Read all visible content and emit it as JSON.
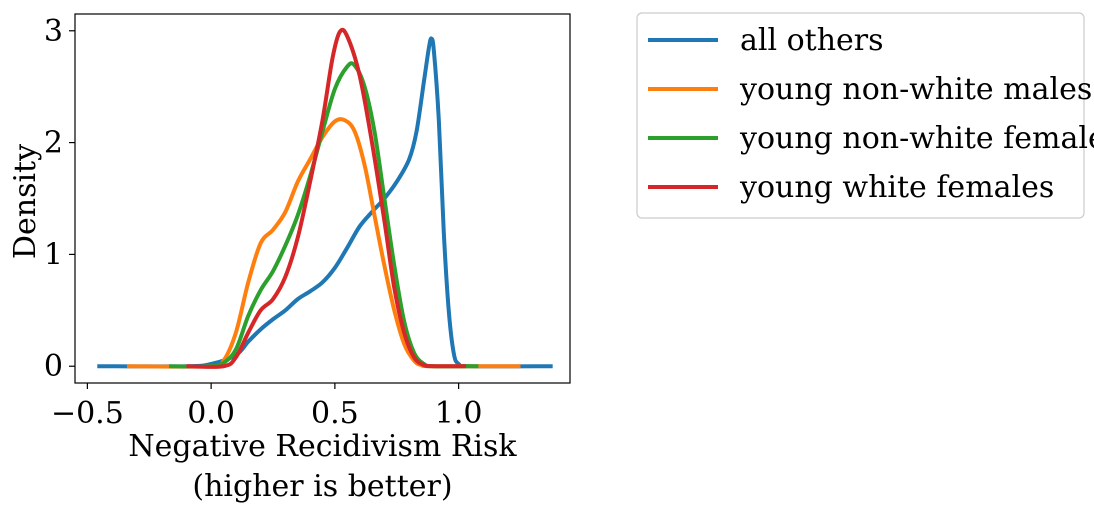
{
  "chart_data": {
    "type": "line",
    "title": "",
    "xlabel_lines": [
      "Negative Recidivism Risk",
      "(higher is better)"
    ],
    "ylabel": "Density",
    "xlim": [
      -0.55,
      1.45
    ],
    "ylim": [
      -0.15,
      3.15
    ],
    "xticks": [
      -0.5,
      0.0,
      0.5,
      1.0
    ],
    "xtick_labels": [
      "−0.5",
      "0.0",
      "0.5",
      "1.0"
    ],
    "yticks": [
      0,
      1,
      2,
      3
    ],
    "ytick_labels": [
      "0",
      "1",
      "2",
      "3"
    ],
    "grid": false,
    "legend_position": "outside-right-top",
    "series": [
      {
        "name": "all others",
        "color": "#1f77b4",
        "points": [
          [
            -0.46,
            0.0
          ],
          [
            -0.1,
            0.0
          ],
          [
            0.0,
            0.02
          ],
          [
            0.1,
            0.1
          ],
          [
            0.15,
            0.22
          ],
          [
            0.2,
            0.33
          ],
          [
            0.25,
            0.42
          ],
          [
            0.3,
            0.5
          ],
          [
            0.35,
            0.6
          ],
          [
            0.4,
            0.67
          ],
          [
            0.45,
            0.75
          ],
          [
            0.5,
            0.88
          ],
          [
            0.55,
            1.06
          ],
          [
            0.6,
            1.25
          ],
          [
            0.65,
            1.38
          ],
          [
            0.7,
            1.5
          ],
          [
            0.75,
            1.65
          ],
          [
            0.8,
            1.85
          ],
          [
            0.83,
            2.1
          ],
          [
            0.86,
            2.55
          ],
          [
            0.88,
            2.85
          ],
          [
            0.89,
            2.93
          ],
          [
            0.9,
            2.82
          ],
          [
            0.92,
            2.2
          ],
          [
            0.94,
            1.2
          ],
          [
            0.96,
            0.5
          ],
          [
            0.98,
            0.12
          ],
          [
            1.0,
            0.02
          ],
          [
            1.05,
            0.0
          ],
          [
            1.38,
            0.0
          ]
        ]
      },
      {
        "name": "young non-white males",
        "color": "#ff7f0e",
        "points": [
          [
            -0.34,
            0.0
          ],
          [
            0.0,
            0.0
          ],
          [
            0.05,
            0.05
          ],
          [
            0.1,
            0.3
          ],
          [
            0.15,
            0.75
          ],
          [
            0.2,
            1.1
          ],
          [
            0.25,
            1.22
          ],
          [
            0.3,
            1.38
          ],
          [
            0.35,
            1.65
          ],
          [
            0.4,
            1.85
          ],
          [
            0.45,
            2.05
          ],
          [
            0.5,
            2.19
          ],
          [
            0.54,
            2.2
          ],
          [
            0.58,
            2.1
          ],
          [
            0.62,
            1.8
          ],
          [
            0.66,
            1.35
          ],
          [
            0.7,
            0.9
          ],
          [
            0.74,
            0.5
          ],
          [
            0.78,
            0.2
          ],
          [
            0.82,
            0.05
          ],
          [
            0.85,
            0.01
          ],
          [
            0.9,
            0.0
          ],
          [
            1.25,
            0.0
          ]
        ]
      },
      {
        "name": "young non-white females",
        "color": "#2ca02c",
        "points": [
          [
            -0.17,
            0.0
          ],
          [
            0.0,
            0.0
          ],
          [
            0.05,
            0.03
          ],
          [
            0.1,
            0.15
          ],
          [
            0.15,
            0.45
          ],
          [
            0.2,
            0.68
          ],
          [
            0.25,
            0.85
          ],
          [
            0.3,
            1.08
          ],
          [
            0.35,
            1.35
          ],
          [
            0.4,
            1.7
          ],
          [
            0.45,
            2.1
          ],
          [
            0.5,
            2.48
          ],
          [
            0.55,
            2.68
          ],
          [
            0.58,
            2.69
          ],
          [
            0.62,
            2.5
          ],
          [
            0.66,
            2.1
          ],
          [
            0.7,
            1.5
          ],
          [
            0.74,
            0.9
          ],
          [
            0.78,
            0.4
          ],
          [
            0.82,
            0.12
          ],
          [
            0.86,
            0.02
          ],
          [
            0.9,
            0.0
          ],
          [
            1.08,
            0.0
          ]
        ]
      },
      {
        "name": "young white females",
        "color": "#d62728",
        "points": [
          [
            -0.1,
            0.0
          ],
          [
            0.05,
            0.0
          ],
          [
            0.1,
            0.08
          ],
          [
            0.15,
            0.3
          ],
          [
            0.2,
            0.5
          ],
          [
            0.25,
            0.6
          ],
          [
            0.3,
            0.8
          ],
          [
            0.35,
            1.15
          ],
          [
            0.4,
            1.65
          ],
          [
            0.45,
            2.2
          ],
          [
            0.49,
            2.75
          ],
          [
            0.52,
            2.99
          ],
          [
            0.55,
            2.95
          ],
          [
            0.6,
            2.6
          ],
          [
            0.65,
            2.0
          ],
          [
            0.7,
            1.3
          ],
          [
            0.74,
            0.7
          ],
          [
            0.78,
            0.3
          ],
          [
            0.82,
            0.08
          ],
          [
            0.86,
            0.01
          ],
          [
            0.9,
            0.0
          ],
          [
            1.03,
            0.0
          ]
        ]
      }
    ]
  }
}
